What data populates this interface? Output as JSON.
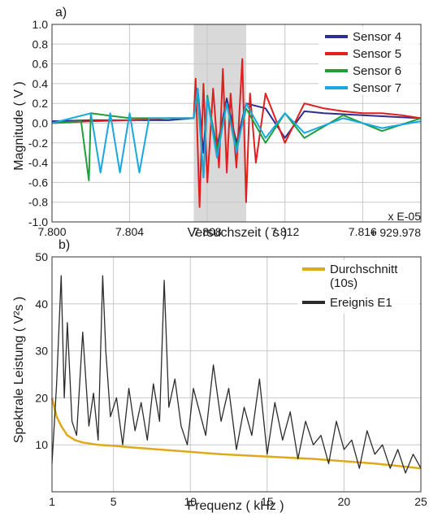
{
  "chart_data": [
    {
      "type": "line",
      "panel_label": "a)",
      "xlabel": "Versuchszeit ( s )",
      "ylabel": "Magnitude ( V )",
      "x_scale_note": "x E-05",
      "x_offset_note": "+ 929.978",
      "xlim": [
        7.8,
        7.819
      ],
      "ylim": [
        -1.0,
        1.0
      ],
      "x_ticks": [
        "7.800",
        "7.804",
        "7.808",
        "7.812",
        "7.816"
      ],
      "x_tick_values": [
        7.8,
        7.804,
        7.808,
        7.812,
        7.816
      ],
      "y_ticks": [
        "1.0",
        "0.8",
        "0.6",
        "0.4",
        "0.2",
        "0.0",
        "-0.2",
        "-0.4",
        "-0.6",
        "-0.8",
        "-1.0"
      ],
      "y_tick_values": [
        1.0,
        0.8,
        0.6,
        0.4,
        0.2,
        0.0,
        -0.2,
        -0.4,
        -0.6,
        -0.8,
        -1.0
      ],
      "highlight_region": [
        7.8073,
        7.81
      ],
      "grid": true,
      "legend_position": "top-right",
      "series": [
        {
          "name": "Sensor 4",
          "color": "#2e2e8f",
          "points": [
            [
              7.8,
              0.02
            ],
            [
              7.802,
              0.03
            ],
            [
              7.804,
              0.03
            ],
            [
              7.806,
              0.03
            ],
            [
              7.8073,
              0.05
            ],
            [
              7.8075,
              0.35
            ],
            [
              7.8078,
              -0.3
            ],
            [
              7.808,
              0.25
            ],
            [
              7.8085,
              -0.25
            ],
            [
              7.809,
              0.25
            ],
            [
              7.8095,
              -0.2
            ],
            [
              7.81,
              0.2
            ],
            [
              7.811,
              0.15
            ],
            [
              7.812,
              -0.15
            ],
            [
              7.813,
              0.12
            ],
            [
              7.814,
              0.1
            ],
            [
              7.816,
              0.08
            ],
            [
              7.818,
              0.06
            ],
            [
              7.819,
              0.05
            ]
          ]
        },
        {
          "name": "Sensor 5",
          "color": "#e02020",
          "points": [
            [
              7.8,
              0.0
            ],
            [
              7.802,
              0.02
            ],
            [
              7.804,
              0.03
            ],
            [
              7.806,
              0.05
            ],
            [
              7.8073,
              0.05
            ],
            [
              7.8074,
              0.45
            ],
            [
              7.8076,
              -0.85
            ],
            [
              7.8078,
              0.4
            ],
            [
              7.808,
              -0.6
            ],
            [
              7.8083,
              0.35
            ],
            [
              7.8086,
              -0.45
            ],
            [
              7.8088,
              0.55
            ],
            [
              7.809,
              -0.5
            ],
            [
              7.8092,
              0.3
            ],
            [
              7.8095,
              -0.45
            ],
            [
              7.8098,
              0.65
            ],
            [
              7.81,
              -0.8
            ],
            [
              7.8102,
              0.3
            ],
            [
              7.8105,
              -0.4
            ],
            [
              7.811,
              0.3
            ],
            [
              7.812,
              -0.2
            ],
            [
              7.813,
              0.2
            ],
            [
              7.814,
              0.15
            ],
            [
              7.815,
              0.12
            ],
            [
              7.816,
              0.1
            ],
            [
              7.817,
              0.1
            ],
            [
              7.818,
              0.08
            ],
            [
              7.819,
              0.05
            ]
          ]
        },
        {
          "name": "Sensor 6",
          "color": "#1f9e3a",
          "points": [
            [
              7.8,
              0.0
            ],
            [
              7.8015,
              0.02
            ],
            [
              7.8019,
              -0.58
            ],
            [
              7.802,
              0.1
            ],
            [
              7.804,
              0.05
            ],
            [
              7.806,
              0.05
            ],
            [
              7.8073,
              0.05
            ],
            [
              7.8075,
              0.3
            ],
            [
              7.8078,
              -0.55
            ],
            [
              7.808,
              0.28
            ],
            [
              7.8085,
              -0.3
            ],
            [
              7.809,
              0.2
            ],
            [
              7.8095,
              -0.25
            ],
            [
              7.81,
              0.15
            ],
            [
              7.811,
              -0.2
            ],
            [
              7.812,
              0.1
            ],
            [
              7.813,
              -0.15
            ],
            [
              7.815,
              0.08
            ],
            [
              7.817,
              -0.08
            ],
            [
              7.819,
              0.05
            ]
          ]
        },
        {
          "name": "Sensor 7",
          "color": "#1aa7e0",
          "points": [
            [
              7.8,
              0.0
            ],
            [
              7.802,
              0.1
            ],
            [
              7.8025,
              -0.5
            ],
            [
              7.803,
              0.1
            ],
            [
              7.8035,
              -0.5
            ],
            [
              7.804,
              0.1
            ],
            [
              7.8045,
              -0.5
            ],
            [
              7.805,
              0.05
            ],
            [
              7.8073,
              0.05
            ],
            [
              7.8075,
              0.35
            ],
            [
              7.8078,
              -0.55
            ],
            [
              7.808,
              0.25
            ],
            [
              7.8085,
              -0.35
            ],
            [
              7.809,
              0.2
            ],
            [
              7.8095,
              -0.3
            ],
            [
              7.81,
              0.2
            ],
            [
              7.811,
              -0.15
            ],
            [
              7.812,
              0.1
            ],
            [
              7.813,
              -0.1
            ],
            [
              7.815,
              0.05
            ],
            [
              7.817,
              -0.05
            ],
            [
              7.819,
              0.02
            ]
          ]
        }
      ]
    },
    {
      "type": "line",
      "panel_label": "b)",
      "xlabel": "Frequenz ( kHz )",
      "ylabel": "Spektrale Leistung ( V²s )",
      "xlim": [
        1,
        25
      ],
      "ylim": [
        0,
        50
      ],
      "x_ticks": [
        "1",
        "5",
        "10",
        "15",
        "20",
        "25"
      ],
      "x_tick_values": [
        1,
        5,
        10,
        15,
        20,
        25
      ],
      "y_ticks": [
        "10",
        "20",
        "30",
        "40",
        "50"
      ],
      "y_tick_values": [
        10,
        20,
        30,
        40,
        50
      ],
      "grid": true,
      "legend_position": "top-right",
      "series": [
        {
          "name": "Durchschnitt (10s)",
          "legend_lines": [
            "Durchschnitt",
            "(10s)"
          ],
          "color": "#e0a81c",
          "x": [
            1,
            1.3,
            1.6,
            2,
            2.5,
            3,
            4,
            5,
            6,
            8,
            10,
            12,
            15,
            18,
            20,
            22,
            25
          ],
          "y": [
            20,
            16,
            14,
            12,
            11,
            10.5,
            10,
            9.8,
            9.5,
            9,
            8.5,
            8,
            7.5,
            7,
            6.5,
            6,
            5
          ]
        },
        {
          "name": "Ereignis E1",
          "color": "#2b2b2b",
          "x": [
            1,
            1.3,
            1.6,
            1.8,
            2,
            2.3,
            2.6,
            3,
            3.4,
            3.7,
            4,
            4.3,
            4.5,
            4.8,
            5.2,
            5.6,
            6,
            6.4,
            6.8,
            7.2,
            7.6,
            8,
            8.3,
            8.6,
            9,
            9.4,
            9.8,
            10.2,
            10.6,
            11,
            11.5,
            12,
            12.5,
            13,
            13.5,
            14,
            14.5,
            15,
            15.5,
            16,
            16.5,
            17,
            17.5,
            18,
            18.5,
            19,
            19.5,
            20,
            20.5,
            21,
            21.5,
            22,
            22.5,
            23,
            23.5,
            24,
            24.5,
            25
          ],
          "y": [
            6,
            23,
            46,
            20,
            36,
            15,
            12,
            34,
            14,
            21,
            11,
            46,
            30,
            16,
            20,
            10,
            22,
            13,
            19,
            11,
            23,
            15,
            45,
            18,
            24,
            14,
            10,
            22,
            17,
            12,
            27,
            15,
            22,
            9,
            18,
            12,
            24,
            8,
            19,
            11,
            17,
            7,
            15,
            10,
            12,
            6,
            15,
            9,
            11,
            5,
            13,
            8,
            10,
            5,
            9,
            4,
            8,
            5
          ]
        }
      ]
    }
  ]
}
